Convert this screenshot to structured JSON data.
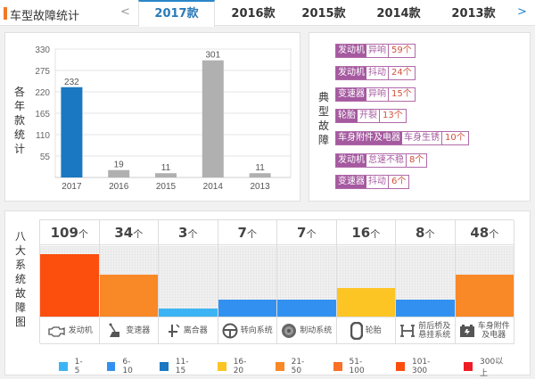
{
  "header": {
    "title": "车型故障统计",
    "prev": "<",
    "next": ">",
    "tabs": [
      {
        "label": "2017款",
        "active": true
      },
      {
        "label": "2016款",
        "active": false
      },
      {
        "label": "2015款",
        "active": false
      },
      {
        "label": "2014款",
        "active": false
      },
      {
        "label": "2013款",
        "active": false
      }
    ]
  },
  "year_panel": {
    "side_label": [
      "各",
      "年",
      "款",
      "统",
      "计"
    ]
  },
  "chart_data": {
    "type": "bar",
    "title": "各年款统计",
    "categories": [
      "2017",
      "2016",
      "2015",
      "2014",
      "2013"
    ],
    "values": [
      232,
      19,
      11,
      301,
      11
    ],
    "highlight_color": "#1a78c2",
    "default_color": "#b0b0b0",
    "highlight_index": 0,
    "yticks": [
      55,
      110,
      165,
      220,
      275,
      330
    ],
    "ylim": [
      0,
      330
    ],
    "grid": true
  },
  "typical_panel": {
    "side_label": [
      "典",
      "型",
      "故",
      "障"
    ],
    "items": [
      {
        "category": "发动机",
        "symptom": "异响",
        "count": "59个"
      },
      {
        "category": "发动机",
        "symptom": "抖动",
        "count": "24个"
      },
      {
        "category": "变速器",
        "symptom": "异响",
        "count": "15个"
      },
      {
        "category": "轮胎",
        "symptom": "开裂",
        "count": "13个"
      },
      {
        "category": "车身附件及电器",
        "symptom": "车身生锈",
        "count": "10个"
      },
      {
        "category": "发动机",
        "symptom": "怠速不稳",
        "count": "8个"
      },
      {
        "category": "变速器",
        "symptom": "抖动",
        "count": "6个"
      }
    ]
  },
  "systems_panel": {
    "side_label": [
      "八",
      "大",
      "系",
      "统",
      "故",
      "障",
      "图"
    ],
    "unit": "个",
    "systems": [
      {
        "name": "发动机",
        "count": "109",
        "value": 109,
        "color": "#fc4e0d",
        "icon": "engine-icon"
      },
      {
        "name": "变速器",
        "count": "34",
        "value": 34,
        "color": "#f98826",
        "icon": "gear-shift-icon"
      },
      {
        "name": "离合器",
        "count": "3",
        "value": 3,
        "color": "#3cb4f4",
        "icon": "clutch-icon"
      },
      {
        "name": "转向系统",
        "count": "7",
        "value": 7,
        "color": "#3291f0",
        "icon": "steering-wheel-icon"
      },
      {
        "name": "制动系统",
        "count": "7",
        "value": 7,
        "color": "#3291f0",
        "icon": "brake-disc-icon"
      },
      {
        "name": "轮胎",
        "count": "16",
        "value": 16,
        "color": "#fcc524",
        "icon": "tire-icon"
      },
      {
        "name": "前后桥及悬挂系统",
        "name_lines": [
          "前后桥及",
          "悬挂系统"
        ],
        "count": "8",
        "value": 8,
        "color": "#3291f0",
        "icon": "suspension-icon"
      },
      {
        "name": "车身附件及电器",
        "name_lines": [
          "车身附件",
          "及电器"
        ],
        "count": "48",
        "value": 48,
        "color": "#f98826",
        "icon": "battery-icon"
      }
    ],
    "legend": [
      {
        "label": "1-5",
        "color": "#3cb4f4"
      },
      {
        "label": "6-10",
        "color": "#3291f0"
      },
      {
        "label": "11-15",
        "color": "#1a78c2"
      },
      {
        "label": "16-20",
        "color": "#fcc524"
      },
      {
        "label": "21-50",
        "color": "#f98826"
      },
      {
        "label": "51-100",
        "color": "#f97026"
      },
      {
        "label": "101-300",
        "color": "#fc4e0d"
      },
      {
        "label": "300以上",
        "color": "#ee1d24"
      }
    ]
  }
}
